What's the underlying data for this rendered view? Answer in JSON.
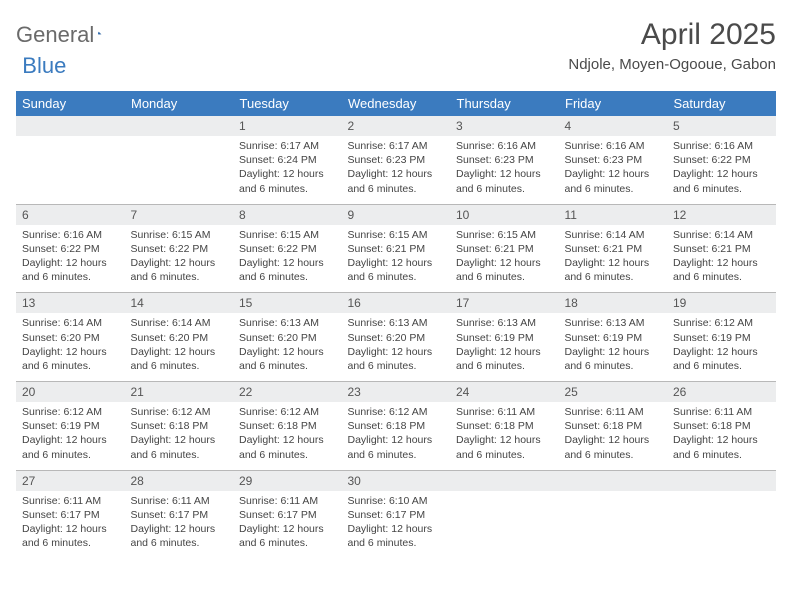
{
  "brand": {
    "part1": "General",
    "part2": "Blue"
  },
  "title": "April 2025",
  "location": "Ndjole, Moyen-Ogooue, Gabon",
  "colors": {
    "header_bg": "#3b7bbf",
    "header_text": "#ffffff",
    "daynum_bg": "#ecedee",
    "border": "#b8b8b8",
    "text": "#444444"
  },
  "weekdays": [
    "Sunday",
    "Monday",
    "Tuesday",
    "Wednesday",
    "Thursday",
    "Friday",
    "Saturday"
  ],
  "weeks": [
    [
      null,
      null,
      {
        "n": "1",
        "rise": "6:17 AM",
        "set": "6:24 PM",
        "dl": "12 hours and 6 minutes."
      },
      {
        "n": "2",
        "rise": "6:17 AM",
        "set": "6:23 PM",
        "dl": "12 hours and 6 minutes."
      },
      {
        "n": "3",
        "rise": "6:16 AM",
        "set": "6:23 PM",
        "dl": "12 hours and 6 minutes."
      },
      {
        "n": "4",
        "rise": "6:16 AM",
        "set": "6:23 PM",
        "dl": "12 hours and 6 minutes."
      },
      {
        "n": "5",
        "rise": "6:16 AM",
        "set": "6:22 PM",
        "dl": "12 hours and 6 minutes."
      }
    ],
    [
      {
        "n": "6",
        "rise": "6:16 AM",
        "set": "6:22 PM",
        "dl": "12 hours and 6 minutes."
      },
      {
        "n": "7",
        "rise": "6:15 AM",
        "set": "6:22 PM",
        "dl": "12 hours and 6 minutes."
      },
      {
        "n": "8",
        "rise": "6:15 AM",
        "set": "6:22 PM",
        "dl": "12 hours and 6 minutes."
      },
      {
        "n": "9",
        "rise": "6:15 AM",
        "set": "6:21 PM",
        "dl": "12 hours and 6 minutes."
      },
      {
        "n": "10",
        "rise": "6:15 AM",
        "set": "6:21 PM",
        "dl": "12 hours and 6 minutes."
      },
      {
        "n": "11",
        "rise": "6:14 AM",
        "set": "6:21 PM",
        "dl": "12 hours and 6 minutes."
      },
      {
        "n": "12",
        "rise": "6:14 AM",
        "set": "6:21 PM",
        "dl": "12 hours and 6 minutes."
      }
    ],
    [
      {
        "n": "13",
        "rise": "6:14 AM",
        "set": "6:20 PM",
        "dl": "12 hours and 6 minutes."
      },
      {
        "n": "14",
        "rise": "6:14 AM",
        "set": "6:20 PM",
        "dl": "12 hours and 6 minutes."
      },
      {
        "n": "15",
        "rise": "6:13 AM",
        "set": "6:20 PM",
        "dl": "12 hours and 6 minutes."
      },
      {
        "n": "16",
        "rise": "6:13 AM",
        "set": "6:20 PM",
        "dl": "12 hours and 6 minutes."
      },
      {
        "n": "17",
        "rise": "6:13 AM",
        "set": "6:19 PM",
        "dl": "12 hours and 6 minutes."
      },
      {
        "n": "18",
        "rise": "6:13 AM",
        "set": "6:19 PM",
        "dl": "12 hours and 6 minutes."
      },
      {
        "n": "19",
        "rise": "6:12 AM",
        "set": "6:19 PM",
        "dl": "12 hours and 6 minutes."
      }
    ],
    [
      {
        "n": "20",
        "rise": "6:12 AM",
        "set": "6:19 PM",
        "dl": "12 hours and 6 minutes."
      },
      {
        "n": "21",
        "rise": "6:12 AM",
        "set": "6:18 PM",
        "dl": "12 hours and 6 minutes."
      },
      {
        "n": "22",
        "rise": "6:12 AM",
        "set": "6:18 PM",
        "dl": "12 hours and 6 minutes."
      },
      {
        "n": "23",
        "rise": "6:12 AM",
        "set": "6:18 PM",
        "dl": "12 hours and 6 minutes."
      },
      {
        "n": "24",
        "rise": "6:11 AM",
        "set": "6:18 PM",
        "dl": "12 hours and 6 minutes."
      },
      {
        "n": "25",
        "rise": "6:11 AM",
        "set": "6:18 PM",
        "dl": "12 hours and 6 minutes."
      },
      {
        "n": "26",
        "rise": "6:11 AM",
        "set": "6:18 PM",
        "dl": "12 hours and 6 minutes."
      }
    ],
    [
      {
        "n": "27",
        "rise": "6:11 AM",
        "set": "6:17 PM",
        "dl": "12 hours and 6 minutes."
      },
      {
        "n": "28",
        "rise": "6:11 AM",
        "set": "6:17 PM",
        "dl": "12 hours and 6 minutes."
      },
      {
        "n": "29",
        "rise": "6:11 AM",
        "set": "6:17 PM",
        "dl": "12 hours and 6 minutes."
      },
      {
        "n": "30",
        "rise": "6:10 AM",
        "set": "6:17 PM",
        "dl": "12 hours and 6 minutes."
      },
      null,
      null,
      null
    ]
  ],
  "labels": {
    "sunrise": "Sunrise:",
    "sunset": "Sunset:",
    "daylight": "Daylight:"
  }
}
